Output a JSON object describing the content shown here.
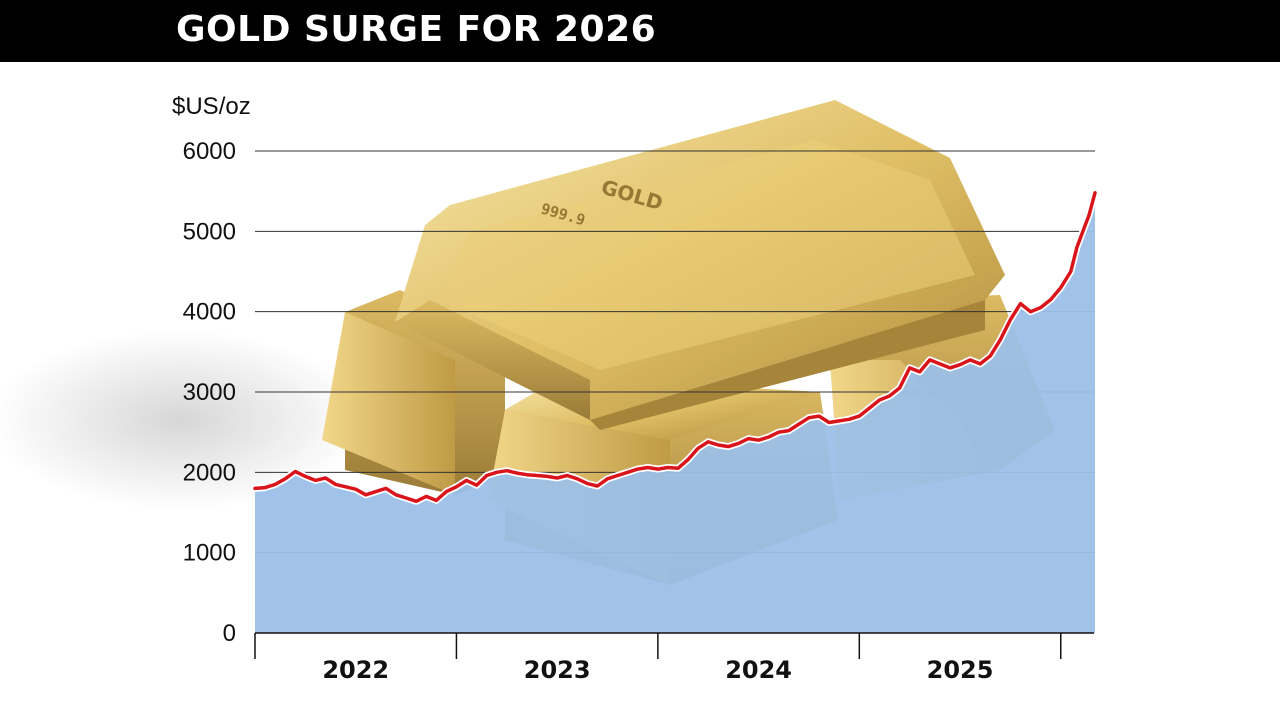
{
  "header": {
    "title": "GOLD SURGE FOR 2026"
  },
  "colors": {
    "header_bg": "#000000",
    "title_text": "#ffffff",
    "area_fill": "#9cc0e8",
    "line": "#d9141b",
    "line_halo": "#ffffff",
    "gridline": "#333333",
    "gold_light": "#f2d98a",
    "gold_mid": "#d7b04b",
    "gold_dark": "#a67d22"
  },
  "chart_data": {
    "type": "area",
    "title": "GOLD SURGE FOR 2026",
    "ylabel": "$US/oz",
    "xlabel": "",
    "ylim": [
      0,
      6000
    ],
    "yticks": [
      0,
      1000,
      2000,
      3000,
      4000,
      5000,
      6000
    ],
    "ytick_labels": [
      "0",
      "1000",
      "2000",
      "3000",
      "4000",
      "5000",
      "6000"
    ],
    "xlim": [
      2022.0,
      2026.17
    ],
    "xtick_labels": [
      "2022",
      "2023",
      "2024",
      "2025"
    ],
    "grid": true,
    "series": [
      {
        "values_x": [
          2022.0,
          2022.05,
          2022.1,
          2022.15,
          2022.2,
          2022.25,
          2022.3,
          2022.35,
          2022.4,
          2022.45,
          2022.5,
          2022.55,
          2022.6,
          2022.65,
          2022.7,
          2022.75,
          2022.8,
          2022.85,
          2022.9,
          2022.95,
          2023.0,
          2023.05,
          2023.1,
          2023.15,
          2023.2,
          2023.25,
          2023.3,
          2023.35,
          2023.4,
          2023.45,
          2023.5,
          2023.55,
          2023.6,
          2023.65,
          2023.7,
          2023.75,
          2023.8,
          2023.85,
          2023.9,
          2023.95,
          2024.0,
          2024.05,
          2024.1,
          2024.15,
          2024.2,
          2024.25,
          2024.3,
          2024.35,
          2024.4,
          2024.45,
          2024.5,
          2024.55,
          2024.6,
          2024.65,
          2024.7,
          2024.75,
          2024.8,
          2024.85,
          2024.9,
          2024.95,
          2025.0,
          2025.05,
          2025.1,
          2025.15,
          2025.2,
          2025.25,
          2025.3,
          2025.35,
          2025.4,
          2025.45,
          2025.5,
          2025.55,
          2025.6,
          2025.65,
          2025.7,
          2025.75,
          2025.8,
          2025.85,
          2025.9,
          2025.95,
          2026.0,
          2026.05,
          2026.08,
          2026.11,
          2026.14,
          2026.17
        ],
        "values": [
          1800,
          1810,
          1850,
          1920,
          2010,
          1950,
          1900,
          1930,
          1850,
          1820,
          1790,
          1720,
          1760,
          1800,
          1720,
          1680,
          1640,
          1700,
          1650,
          1760,
          1820,
          1900,
          1840,
          1960,
          2000,
          2020,
          1990,
          1970,
          1960,
          1950,
          1930,
          1960,
          1920,
          1860,
          1830,
          1920,
          1960,
          2000,
          2040,
          2060,
          2040,
          2060,
          2050,
          2160,
          2300,
          2380,
          2340,
          2320,
          2360,
          2420,
          2400,
          2440,
          2500,
          2520,
          2600,
          2680,
          2700,
          2620,
          2640,
          2660,
          2700,
          2800,
          2900,
          2950,
          3050,
          3300,
          3250,
          3400,
          3350,
          3300,
          3340,
          3400,
          3350,
          3450,
          3650,
          3900,
          4100,
          4000,
          4050,
          4150,
          4300,
          4500,
          4800,
          5000,
          5200,
          5480
        ]
      }
    ]
  }
}
